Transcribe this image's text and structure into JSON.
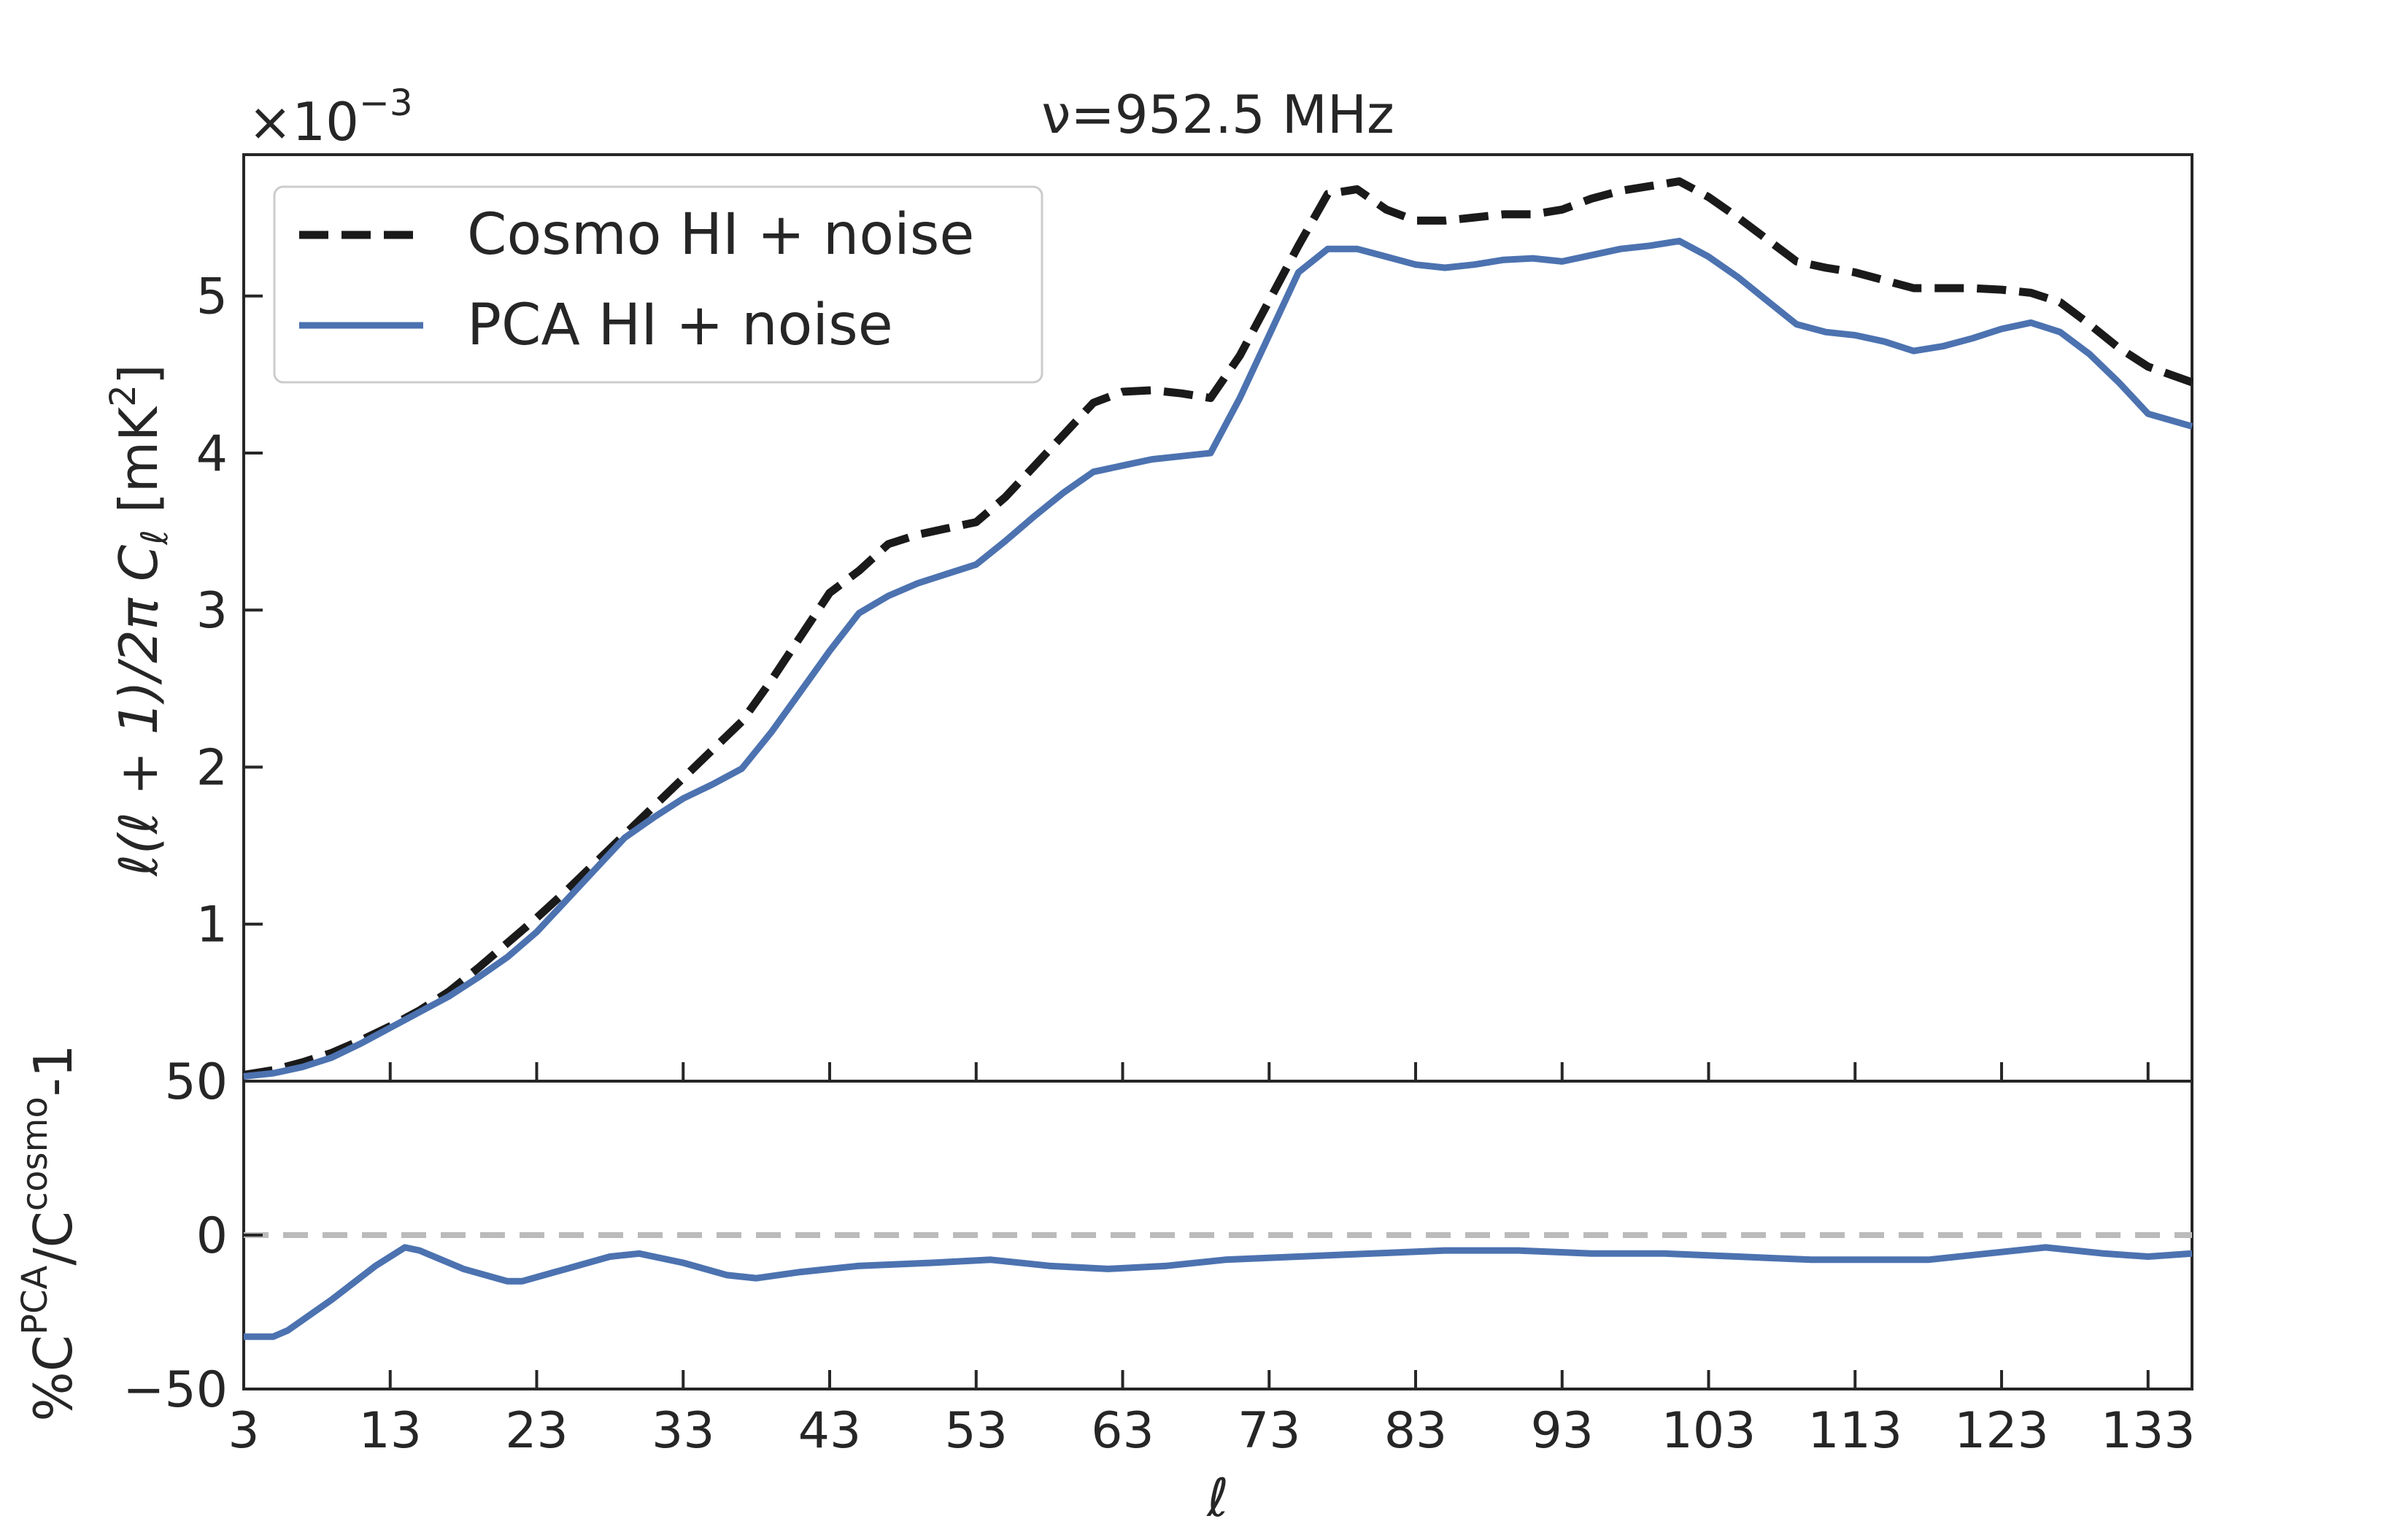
{
  "chart_data": [
    {
      "type": "line",
      "title": "ν=952.5 MHz",
      "xlabel": "",
      "ylabel": "ℓ(ℓ + 1)/2π C_ℓ [mK²]",
      "ylabel_parts": {
        "main": "ℓ(ℓ + 1)/2π C",
        "sub": "ℓ",
        "unit": "[mK",
        "unit_sup": "2",
        "unit_end": "]"
      },
      "offset_text": {
        "base": "×10",
        "exp": "−3"
      },
      "xlim": [
        3,
        136
      ],
      "ylim": [
        0,
        0.0059
      ],
      "yticks": [
        0,
        0.001,
        0.002,
        0.003,
        0.004,
        0.005
      ],
      "ytick_labels": [
        "0",
        "1",
        "2",
        "3",
        "4",
        "5"
      ],
      "grid": false,
      "legend_position": "top-left",
      "series": [
        {
          "name": "Cosmo HI + noise",
          "style": "dashed",
          "color": "#1a1a1a",
          "x": [
            3,
            5,
            7,
            9,
            11,
            13,
            15,
            17,
            19,
            21,
            23,
            25,
            27,
            29,
            31,
            33,
            35,
            37,
            39,
            41,
            43,
            45,
            47,
            49,
            51,
            53,
            55,
            57,
            59,
            61,
            63,
            65,
            67,
            69,
            71,
            73,
            75,
            77,
            79,
            81,
            83,
            85,
            87,
            89,
            91,
            93,
            95,
            97,
            99,
            101,
            103,
            105,
            107,
            109,
            111,
            113,
            115,
            117,
            119,
            121,
            123,
            125,
            127,
            129,
            131,
            133,
            136
          ],
          "y": [
            4e-05,
            7e-05,
            0.00012,
            0.00018,
            0.00026,
            0.00035,
            0.00045,
            0.00057,
            0.00072,
            0.00088,
            0.00104,
            0.00121,
            0.00139,
            0.00157,
            0.00175,
            0.00193,
            0.00211,
            0.00229,
            0.00255,
            0.00283,
            0.00311,
            0.00325,
            0.00342,
            0.00348,
            0.00352,
            0.00356,
            0.00372,
            0.00392,
            0.00412,
            0.00432,
            0.00439,
            0.0044,
            0.00438,
            0.00435,
            0.00462,
            0.00497,
            0.00532,
            0.00565,
            0.00568,
            0.00555,
            0.00548,
            0.00548,
            0.0055,
            0.00552,
            0.00552,
            0.00555,
            0.00562,
            0.00567,
            0.0057,
            0.00573,
            0.00563,
            0.0055,
            0.00536,
            0.00522,
            0.00518,
            0.00515,
            0.0051,
            0.00505,
            0.00505,
            0.00505,
            0.00504,
            0.00502,
            0.00496,
            0.00482,
            0.00467,
            0.00455,
            0.00445
          ]
        },
        {
          "name": "PCA HI + noise",
          "style": "solid",
          "color": "#4c72b0",
          "x": [
            3,
            5,
            7,
            9,
            11,
            13,
            15,
            17,
            19,
            21,
            23,
            25,
            27,
            29,
            31,
            33,
            35,
            37,
            39,
            41,
            43,
            45,
            47,
            49,
            51,
            53,
            55,
            57,
            59,
            61,
            63,
            65,
            67,
            69,
            71,
            73,
            75,
            77,
            79,
            81,
            83,
            85,
            87,
            89,
            91,
            93,
            95,
            97,
            99,
            101,
            103,
            105,
            107,
            109,
            111,
            113,
            115,
            117,
            119,
            121,
            123,
            125,
            127,
            129,
            131,
            133,
            136
          ],
          "y": [
            3e-05,
            5e-05,
            9e-05,
            0.00015,
            0.00024,
            0.00034,
            0.00044,
            0.00054,
            0.00066,
            0.00079,
            0.00095,
            0.00115,
            0.00135,
            0.00155,
            0.00168,
            0.0018,
            0.00189,
            0.00199,
            0.00222,
            0.00248,
            0.00274,
            0.00298,
            0.00309,
            0.00317,
            0.00323,
            0.00329,
            0.00344,
            0.0036,
            0.00375,
            0.00388,
            0.00392,
            0.00396,
            0.00398,
            0.004,
            0.00435,
            0.00475,
            0.00515,
            0.0053,
            0.0053,
            0.00525,
            0.0052,
            0.00518,
            0.0052,
            0.00523,
            0.00524,
            0.00522,
            0.00526,
            0.0053,
            0.00532,
            0.00535,
            0.00525,
            0.00512,
            0.00497,
            0.00482,
            0.00477,
            0.00475,
            0.00471,
            0.00465,
            0.00468,
            0.00473,
            0.00479,
            0.00483,
            0.00477,
            0.00463,
            0.00445,
            0.00425,
            0.00417
          ]
        }
      ]
    },
    {
      "type": "line",
      "title": "",
      "xlabel": "ℓ",
      "ylabel": "%C_ℓ^PCA/C_ℓ^cosmo-1",
      "ylabel_parts": {
        "pct": "%C",
        "sup1": "PCA",
        "slash": "/C",
        "sup2": "cosmo",
        "tail": "-1",
        "sub": "ℓ"
      },
      "xlim": [
        3,
        136
      ],
      "ylim": [
        -50,
        50
      ],
      "xticks": [
        3,
        13,
        23,
        33,
        43,
        53,
        63,
        73,
        83,
        93,
        103,
        113,
        123,
        133
      ],
      "xtick_labels": [
        "3",
        "13",
        "23",
        "33",
        "43",
        "53",
        "63",
        "73",
        "83",
        "93",
        "103",
        "113",
        "123",
        "133"
      ],
      "yticks": [
        -50,
        0,
        50
      ],
      "ytick_labels": [
        "−50",
        "0",
        "50"
      ],
      "reference_line": {
        "y": 0,
        "style": "dashed",
        "color": "#bbbbbb"
      },
      "grid": false,
      "series": [
        {
          "style": "solid",
          "color": "#4c72b0",
          "x": [
            3,
            5,
            6,
            9,
            12,
            14,
            15,
            18,
            21,
            22,
            25,
            28,
            30,
            33,
            36,
            38,
            41,
            45,
            50,
            54,
            58,
            62,
            66,
            70,
            75,
            80,
            85,
            90,
            95,
            100,
            105,
            110,
            115,
            118,
            122,
            126,
            130,
            133,
            136
          ],
          "y": [
            -33,
            -33,
            -31,
            -21,
            -10,
            -4,
            -5,
            -11,
            -15,
            -15,
            -11,
            -7,
            -6,
            -9,
            -13,
            -14,
            -12,
            -10,
            -9,
            -8,
            -10,
            -11,
            -10,
            -8,
            -7,
            -6,
            -5,
            -5,
            -6,
            -6,
            -7,
            -8,
            -8,
            -8,
            -6,
            -4,
            -6,
            -7,
            -6
          ]
        }
      ]
    }
  ]
}
